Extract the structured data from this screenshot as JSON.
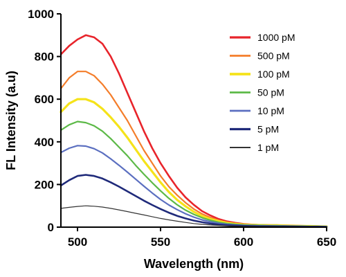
{
  "chart_data": {
    "type": "line",
    "title": "",
    "xlabel": "Wavelength (nm)",
    "ylabel": "FL Intensity (a.u)",
    "xlim": [
      490,
      650
    ],
    "ylim": [
      0,
      1000
    ],
    "xticks": [
      500,
      550,
      600,
      650
    ],
    "yticks": [
      0,
      200,
      400,
      600,
      800,
      1000
    ],
    "grid": false,
    "legend_position": "top-right",
    "x": [
      490,
      495,
      500,
      505,
      510,
      515,
      520,
      525,
      530,
      535,
      540,
      545,
      550,
      555,
      560,
      565,
      570,
      575,
      580,
      585,
      590,
      595,
      600,
      605,
      610,
      615,
      620,
      625,
      630,
      635,
      640,
      645,
      650
    ],
    "series": [
      {
        "name": "1000 pM",
        "color": "#e8242b",
        "width": 2.6,
        "values": [
          810,
          850,
          880,
          900,
          890,
          860,
          800,
          720,
          630,
          540,
          450,
          370,
          300,
          240,
          185,
          140,
          105,
          75,
          55,
          38,
          27,
          20,
          15,
          12,
          10,
          9,
          8,
          7,
          6,
          5,
          5,
          4,
          3
        ]
      },
      {
        "name": "500 pM",
        "color": "#f47d2a",
        "width": 2.2,
        "values": [
          650,
          700,
          730,
          730,
          710,
          670,
          620,
          560,
          500,
          430,
          360,
          300,
          240,
          190,
          150,
          115,
          85,
          62,
          45,
          32,
          23,
          18,
          14,
          12,
          11,
          10,
          10,
          9,
          8,
          7,
          6,
          5,
          4
        ]
      },
      {
        "name": "100 pM",
        "color": "#f5e31a",
        "width": 3.2,
        "values": [
          540,
          580,
          600,
          600,
          585,
          555,
          515,
          470,
          420,
          365,
          310,
          260,
          210,
          165,
          128,
          98,
          72,
          52,
          38,
          28,
          20,
          15,
          12,
          10,
          9,
          8,
          8,
          7,
          6,
          5,
          5,
          4,
          3
        ]
      },
      {
        "name": "50 pM",
        "color": "#5cb947",
        "width": 2.2,
        "values": [
          455,
          480,
          495,
          490,
          475,
          450,
          415,
          375,
          335,
          290,
          248,
          208,
          170,
          135,
          105,
          80,
          60,
          44,
          32,
          23,
          17,
          13,
          10,
          9,
          8,
          7,
          7,
          6,
          5,
          5,
          4,
          4,
          3
        ]
      },
      {
        "name": "10 pM",
        "color": "#5b6fc0",
        "width": 2.2,
        "values": [
          350,
          370,
          382,
          380,
          368,
          348,
          320,
          290,
          258,
          225,
          192,
          160,
          130,
          104,
          82,
          63,
          47,
          34,
          25,
          18,
          13,
          10,
          8,
          7,
          6,
          6,
          5,
          5,
          4,
          4,
          3,
          3,
          2
        ]
      },
      {
        "name": "5 pM",
        "color": "#1f2a7a",
        "width": 2.6,
        "values": [
          195,
          220,
          240,
          245,
          240,
          228,
          210,
          190,
          168,
          146,
          124,
          104,
          85,
          68,
          53,
          41,
          31,
          23,
          17,
          12,
          9,
          7,
          6,
          5,
          4,
          4,
          3,
          3,
          3,
          2,
          2,
          2,
          1
        ]
      },
      {
        "name": "1 pM",
        "color": "#333333",
        "width": 1.2,
        "values": [
          88,
          93,
          97,
          100,
          98,
          94,
          88,
          81,
          73,
          65,
          57,
          49,
          41,
          34,
          28,
          22,
          17,
          13,
          10,
          8,
          6,
          5,
          4,
          4,
          3,
          3,
          3,
          2,
          2,
          2,
          2,
          1,
          1
        ]
      }
    ]
  }
}
